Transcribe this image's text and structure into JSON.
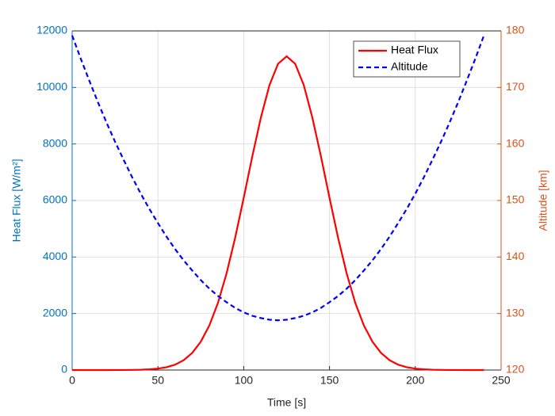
{
  "chart_data": {
    "type": "line",
    "xlabel": "Time [s]",
    "ylabel": "Heat Flux [W/m²]",
    "y2label": "Altitude [km]",
    "x": [
      0,
      5,
      10,
      15,
      20,
      25,
      30,
      35,
      40,
      45,
      50,
      55,
      60,
      65,
      70,
      75,
      80,
      85,
      90,
      95,
      100,
      105,
      110,
      115,
      120,
      125,
      130,
      135,
      140,
      145,
      150,
      155,
      160,
      165,
      170,
      175,
      180,
      185,
      190,
      195,
      200,
      205,
      210,
      215,
      220,
      225,
      230,
      235,
      240
    ],
    "series": [
      {
        "name": "Heat Flux",
        "color": "#ff0000",
        "dash": false,
        "axis": "y",
        "values": [
          0,
          0,
          0,
          0,
          0,
          1,
          2,
          5,
          11,
          24,
          50,
          100,
          191,
          348,
          607,
          1006,
          1582,
          2379,
          3420,
          4680,
          6094,
          7562,
          8934,
          10082,
          10836,
          11100,
          10836,
          10082,
          8934,
          7562,
          6094,
          4680,
          3420,
          2379,
          1582,
          1006,
          607,
          348,
          191,
          100,
          50,
          24,
          11,
          5,
          2,
          1,
          0,
          0,
          0
        ]
      },
      {
        "name": "Altitude",
        "color": "#0000ff",
        "dash": true,
        "axis": "y2",
        "values": [
          179.2,
          175.1,
          171.2,
          167.4,
          163.8,
          160.4,
          157.2,
          154.1,
          151.2,
          148.5,
          146.0,
          143.6,
          141.4,
          139.4,
          137.6,
          135.9,
          134.4,
          133.1,
          132.0,
          131.0,
          130.2,
          129.6,
          129.2,
          128.9,
          128.8,
          128.9,
          129.2,
          129.6,
          130.2,
          131.0,
          132.0,
          133.1,
          134.4,
          135.9,
          137.6,
          139.4,
          141.4,
          143.6,
          146.0,
          148.5,
          151.2,
          154.1,
          157.2,
          160.4,
          163.8,
          167.4,
          171.2,
          175.1,
          179.2
        ]
      }
    ],
    "xlim": [
      0,
      250
    ],
    "xticks": [
      0,
      50,
      100,
      150,
      200,
      250
    ],
    "ylim": [
      0,
      12000
    ],
    "yticks": [
      0,
      2000,
      4000,
      6000,
      8000,
      10000,
      12000
    ],
    "y2lim": [
      120,
      180
    ],
    "y2ticks": [
      120,
      130,
      140,
      150,
      160,
      170,
      180
    ],
    "ycolor": "#0072bd",
    "y2color": "#d95319",
    "grid": true,
    "legend": "upper right"
  }
}
